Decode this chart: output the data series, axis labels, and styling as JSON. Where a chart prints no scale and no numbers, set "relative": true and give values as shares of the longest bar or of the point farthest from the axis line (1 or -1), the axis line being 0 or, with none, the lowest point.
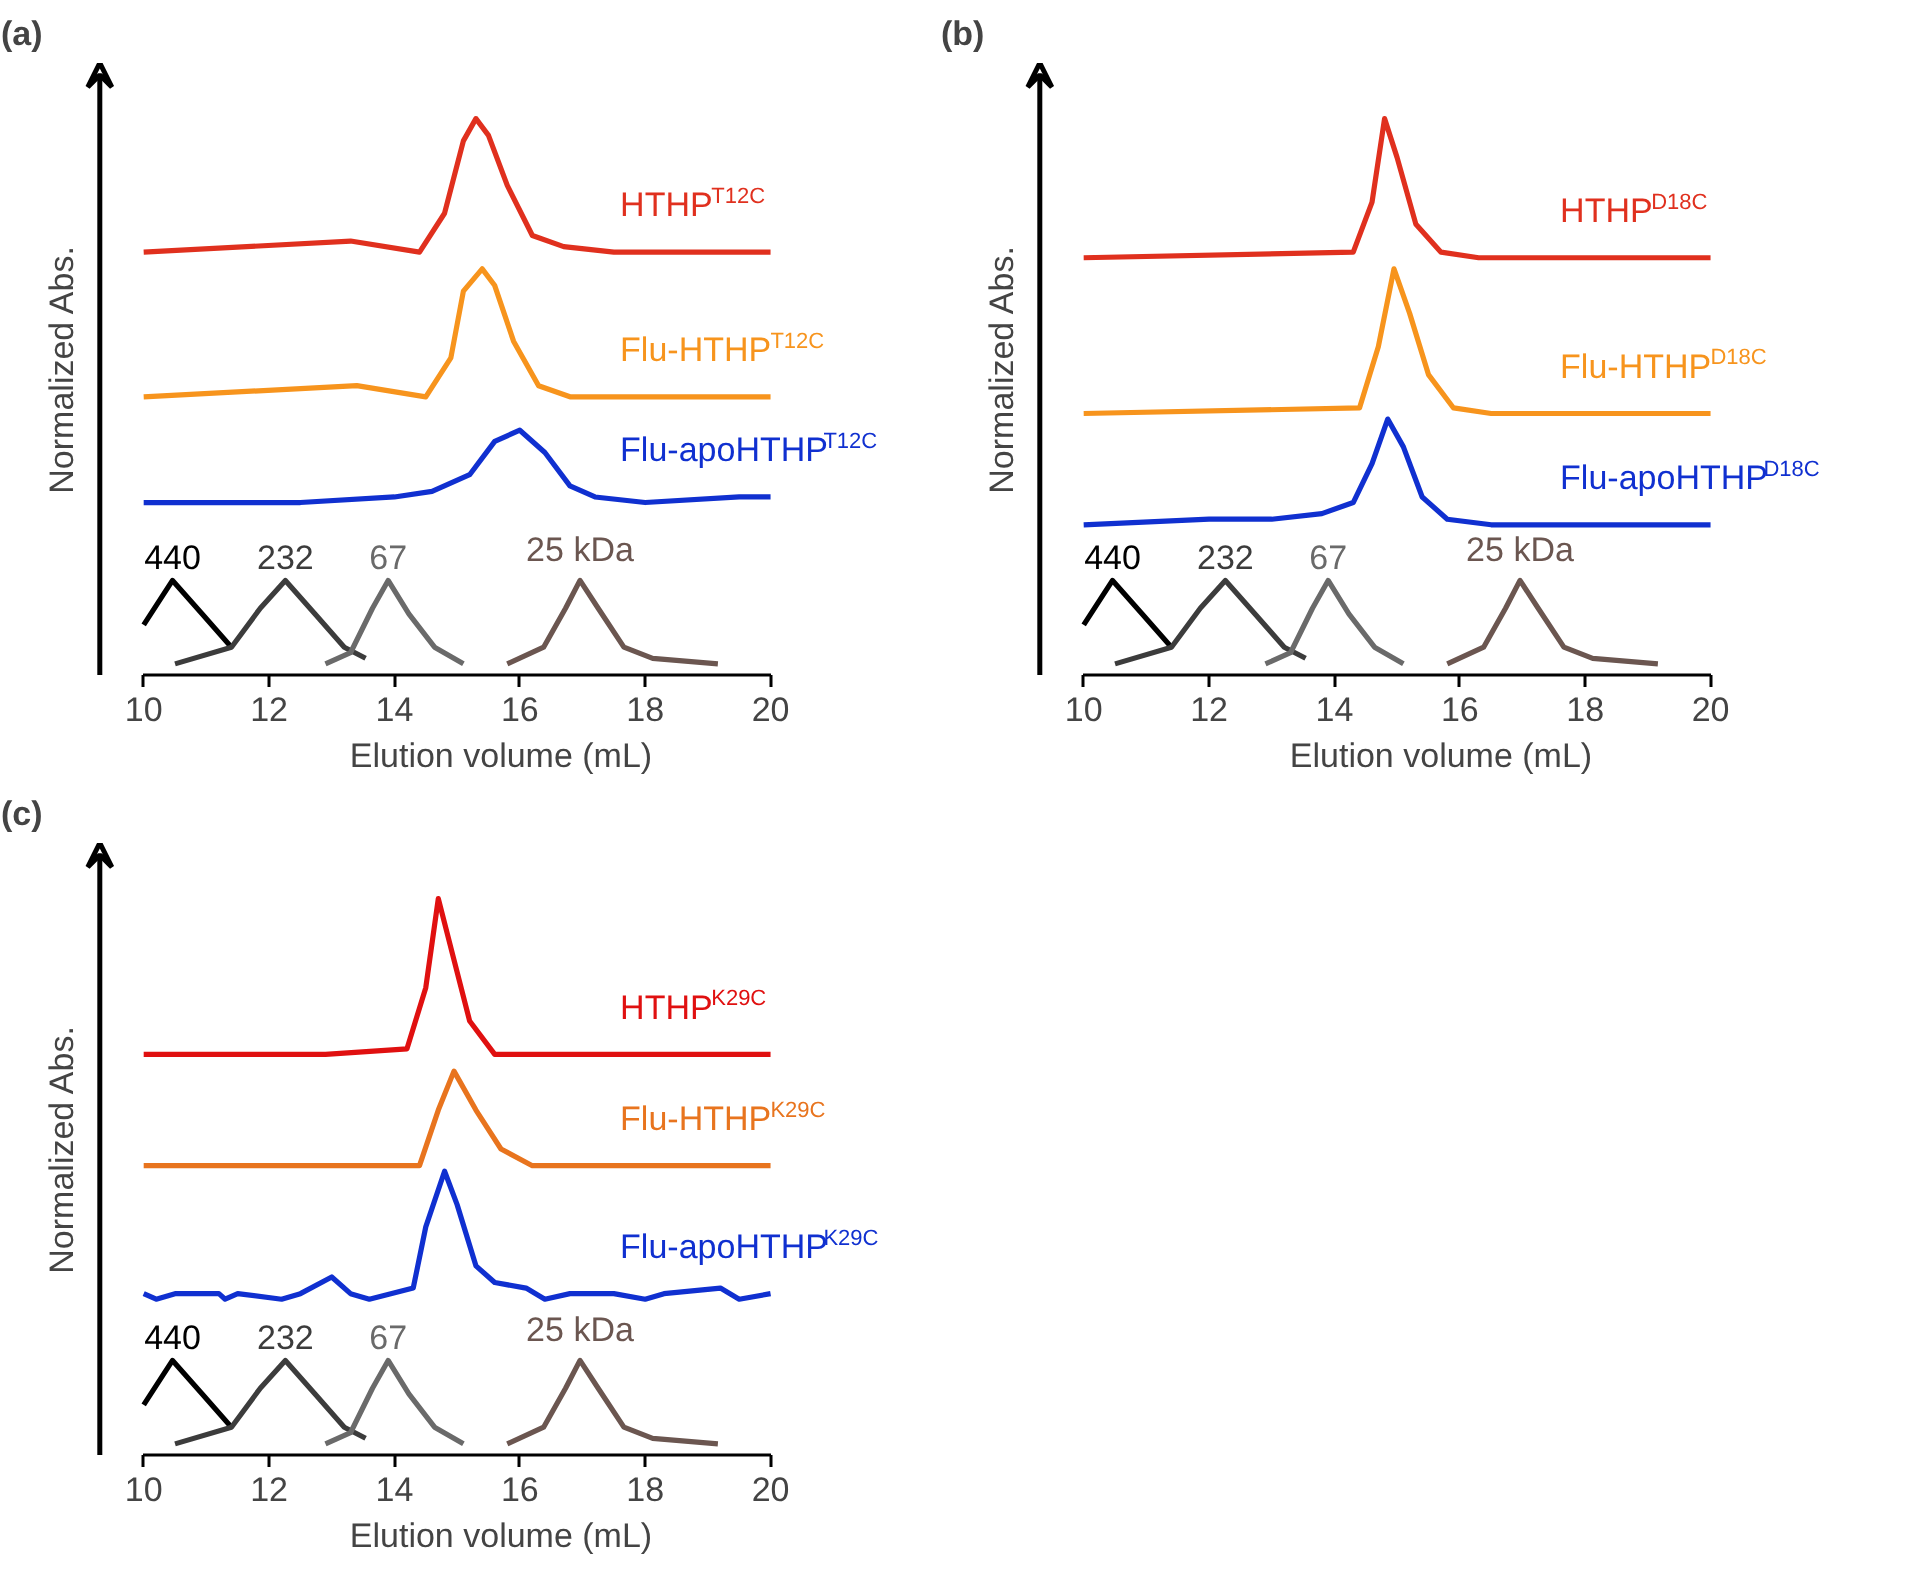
{
  "chart_data": [
    {
      "type": "line",
      "title": "(a)",
      "xlabel": "Elution volume (mL)",
      "ylabel": "Normalized Abs.",
      "relative": true,
      "xlim": [
        10,
        20
      ],
      "xticks": [
        10,
        12,
        14,
        16,
        18,
        20
      ],
      "tick_labels": "x",
      "grid": false,
      "series": [
        {
          "name": "HTHP$^{T12C}$",
          "color": "#e0301e",
          "x": [
            10,
            13.3,
            14.4,
            14.8,
            15.1,
            15.3,
            15.5,
            15.8,
            16.2,
            16.7,
            17.5,
            20
          ],
          "values": [
            0.76,
            0.78,
            0.76,
            0.83,
            0.96,
            1.0,
            0.97,
            0.88,
            0.79,
            0.77,
            0.76,
            0.76
          ]
        },
        {
          "name": "Flu-HTHP$^{T12C}$",
          "color": "#f7941d",
          "x": [
            10,
            13.4,
            14.5,
            14.9,
            15.1,
            15.4,
            15.6,
            15.9,
            16.3,
            16.8,
            20
          ],
          "values": [
            0.5,
            0.52,
            0.5,
            0.57,
            0.69,
            0.73,
            0.7,
            0.6,
            0.52,
            0.5,
            0.5
          ]
        },
        {
          "name": "Flu-apoHTHP$^{T12C}$",
          "color": "#1030d0",
          "x": [
            10,
            12.5,
            14,
            14.6,
            15.2,
            15.6,
            16.0,
            16.4,
            16.8,
            17.2,
            18,
            19.5,
            20
          ],
          "values": [
            0.31,
            0.31,
            0.32,
            0.33,
            0.36,
            0.42,
            0.44,
            0.4,
            0.34,
            0.32,
            0.31,
            0.32,
            0.32
          ]
        },
        {
          "name": "440",
          "color": "#000000",
          "x": [
            10.0,
            10.46,
            10.93,
            11.4
          ],
          "values": [
            0.09,
            0.17,
            0.11,
            0.05
          ]
        },
        {
          "name": "232",
          "color": "#3c3c3c",
          "x": [
            10.5,
            11.4,
            11.86,
            12.26,
            12.73,
            13.2,
            13.54
          ],
          "values": [
            0.02,
            0.05,
            0.12,
            0.17,
            0.11,
            0.05,
            0.03
          ]
        },
        {
          "name": "67",
          "color": "#6a6a6a",
          "x": [
            12.9,
            13.3,
            13.65,
            13.9,
            14.23,
            14.64,
            15.1
          ],
          "values": [
            0.02,
            0.04,
            0.12,
            0.17,
            0.11,
            0.05,
            0.02
          ]
        },
        {
          "name": "25 kDa",
          "color": "#6b5650",
          "x": [
            15.8,
            16.38,
            16.73,
            16.96,
            17.25,
            17.66,
            18.12,
            19.16
          ],
          "values": [
            0.02,
            0.05,
            0.12,
            0.17,
            0.12,
            0.05,
            0.03,
            0.02
          ]
        }
      ]
    },
    {
      "type": "line",
      "title": "(b)",
      "xlabel": "Elution volume (mL)",
      "ylabel": "Normalized Abs.",
      "relative": true,
      "xlim": [
        10,
        20
      ],
      "xticks": [
        10,
        12,
        14,
        16,
        18,
        20
      ],
      "tick_labels": "x",
      "grid": false,
      "series": [
        {
          "name": "HTHP$^{D18C}$",
          "color": "#e0301e",
          "x": [
            10,
            14.3,
            14.6,
            14.8,
            15.0,
            15.3,
            15.7,
            16.3,
            20
          ],
          "values": [
            0.75,
            0.76,
            0.85,
            1.0,
            0.93,
            0.81,
            0.76,
            0.75,
            0.75
          ]
        },
        {
          "name": "Flu-HTHP$^{D18C}$",
          "color": "#f7941d",
          "x": [
            10,
            14.4,
            14.7,
            14.95,
            15.2,
            15.5,
            15.9,
            16.5,
            20
          ],
          "values": [
            0.47,
            0.48,
            0.59,
            0.73,
            0.65,
            0.54,
            0.48,
            0.47,
            0.47
          ]
        },
        {
          "name": "Flu-apoHTHP$^{D18C}$",
          "color": "#1030d0",
          "x": [
            10,
            12,
            13,
            13.8,
            14.3,
            14.6,
            14.85,
            15.1,
            15.4,
            15.8,
            16.5,
            20
          ],
          "values": [
            0.27,
            0.28,
            0.28,
            0.29,
            0.31,
            0.38,
            0.46,
            0.41,
            0.32,
            0.28,
            0.27,
            0.27
          ]
        },
        {
          "name": "440",
          "color": "#000000",
          "x": [
            10.0,
            10.46,
            10.93,
            11.4
          ],
          "values": [
            0.09,
            0.17,
            0.11,
            0.05
          ]
        },
        {
          "name": "232",
          "color": "#3c3c3c",
          "x": [
            10.5,
            11.4,
            11.86,
            12.26,
            12.73,
            13.2,
            13.54
          ],
          "values": [
            0.02,
            0.05,
            0.12,
            0.17,
            0.11,
            0.05,
            0.03
          ]
        },
        {
          "name": "67",
          "color": "#6a6a6a",
          "x": [
            12.9,
            13.3,
            13.65,
            13.9,
            14.23,
            14.64,
            15.1
          ],
          "values": [
            0.02,
            0.04,
            0.12,
            0.17,
            0.11,
            0.05,
            0.02
          ]
        },
        {
          "name": "25 kDa",
          "color": "#6b5650",
          "x": [
            15.8,
            16.38,
            16.73,
            16.96,
            17.25,
            17.66,
            18.12,
            19.16
          ],
          "values": [
            0.02,
            0.05,
            0.12,
            0.17,
            0.12,
            0.05,
            0.03,
            0.02
          ]
        }
      ]
    },
    {
      "type": "line",
      "title": "(c)",
      "xlabel": "Elution volume (mL)",
      "ylabel": "Normalized Abs.",
      "relative": true,
      "xlim": [
        10,
        20
      ],
      "xticks": [
        10,
        12,
        14,
        16,
        18,
        20
      ],
      "tick_labels": "x",
      "grid": false,
      "series": [
        {
          "name": "HTHP$^{K29C}$",
          "color": "#e01010",
          "x": [
            10,
            12.9,
            14.2,
            14.5,
            14.7,
            14.95,
            15.2,
            15.6,
            20
          ],
          "values": [
            0.72,
            0.72,
            0.73,
            0.84,
            1.0,
            0.89,
            0.78,
            0.72,
            0.72
          ]
        },
        {
          "name": "Flu-HTHP$^{K29C}$",
          "color": "#e8741e",
          "x": [
            10,
            14.4,
            14.7,
            14.95,
            15.3,
            15.7,
            16.2,
            20
          ],
          "values": [
            0.52,
            0.52,
            0.62,
            0.69,
            0.62,
            0.55,
            0.52,
            0.52
          ]
        },
        {
          "name": "Flu-apoHTHP$^{K29C}$",
          "color": "#1030d0",
          "x": [
            10,
            10.2,
            10.5,
            11.2,
            11.3,
            11.5,
            12.2,
            12.5,
            13.0,
            13.3,
            13.6,
            14.3,
            14.5,
            14.8,
            15.0,
            15.3,
            15.6,
            16.1,
            16.4,
            16.8,
            17.5,
            18.0,
            18.3,
            19.2,
            19.5,
            20
          ],
          "values": [
            0.29,
            0.28,
            0.29,
            0.29,
            0.28,
            0.29,
            0.28,
            0.29,
            0.32,
            0.29,
            0.28,
            0.3,
            0.41,
            0.51,
            0.45,
            0.34,
            0.31,
            0.3,
            0.28,
            0.29,
            0.29,
            0.28,
            0.29,
            0.3,
            0.28,
            0.29
          ]
        },
        {
          "name": "440",
          "color": "#000000",
          "x": [
            10.0,
            10.46,
            10.93,
            11.4
          ],
          "values": [
            0.09,
            0.17,
            0.11,
            0.05
          ]
        },
        {
          "name": "232",
          "color": "#3c3c3c",
          "x": [
            10.5,
            11.4,
            11.86,
            12.26,
            12.73,
            13.2,
            13.54
          ],
          "values": [
            0.02,
            0.05,
            0.12,
            0.17,
            0.11,
            0.05,
            0.03
          ]
        },
        {
          "name": "67",
          "color": "#6a6a6a",
          "x": [
            12.9,
            13.3,
            13.65,
            13.9,
            14.23,
            14.64,
            15.1
          ],
          "values": [
            0.02,
            0.04,
            0.12,
            0.17,
            0.11,
            0.05,
            0.02
          ]
        },
        {
          "name": "25 kDa",
          "color": "#6b5650",
          "x": [
            15.8,
            16.38,
            16.73,
            16.96,
            17.25,
            17.66,
            18.12,
            19.16
          ],
          "values": [
            0.02,
            0.05,
            0.12,
            0.17,
            0.12,
            0.05,
            0.03,
            0.02
          ]
        }
      ]
    }
  ]
}
